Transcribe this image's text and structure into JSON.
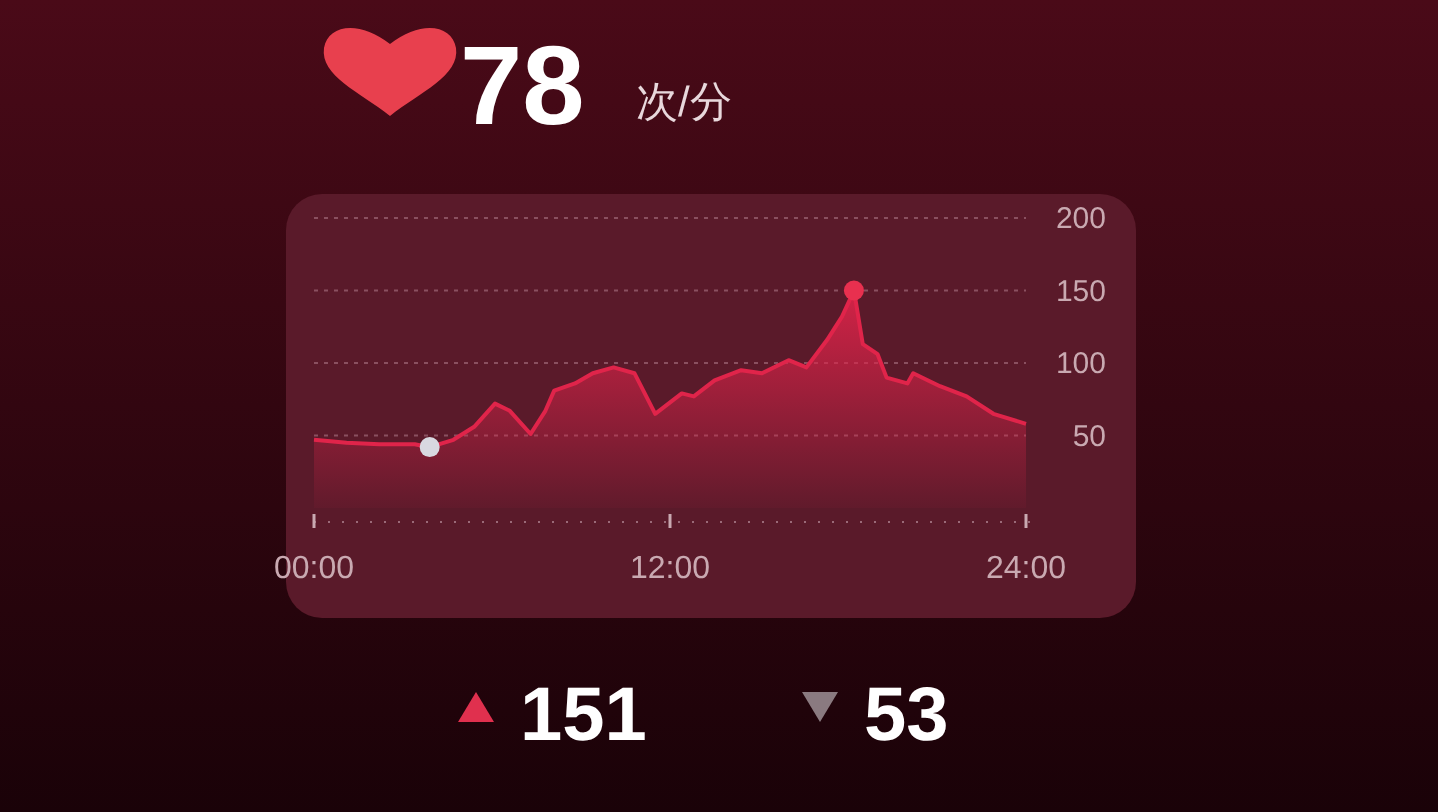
{
  "chart_data": {
    "type": "area",
    "title": "78",
    "annotations": [
      "次/分",
      "151",
      "53"
    ],
    "xlim": [
      0,
      24
    ],
    "xticks": [
      {
        "value": 0,
        "label": "00:00"
      },
      {
        "value": 12,
        "label": "12:00"
      },
      {
        "value": 24,
        "label": "24:00"
      }
    ],
    "ylim": [
      0,
      200
    ],
    "yticks": [
      50,
      100,
      150,
      200
    ],
    "grid": "y",
    "series": [
      {
        "color": "#e0244a",
        "x": [
          0,
          1.1,
          2.2,
          3.4,
          3.9,
          4.7,
          5.4,
          6.1,
          6.6,
          7.3,
          7.8,
          8.1,
          8.8,
          9.4,
          10.1,
          10.8,
          11.5,
          12.4,
          12.8,
          13.5,
          14.4,
          15.1,
          16,
          16.6,
          17.3,
          17.8,
          18.2,
          18.5,
          19,
          19.3,
          20,
          20.2,
          21.1,
          22,
          22.9,
          24
        ],
        "values": [
          47,
          45,
          44,
          44,
          42,
          47,
          56,
          72,
          67,
          51,
          67,
          81,
          86,
          93,
          97,
          93,
          65,
          79,
          77,
          88,
          95,
          93,
          102,
          97,
          116,
          132,
          150,
          113,
          106,
          90,
          86,
          93,
          84,
          77,
          65,
          58
        ]
      },
      {
        "type": "scatter",
        "color": "#e8304f",
        "x": [
          18.2
        ],
        "values": [
          150
        ]
      },
      {
        "type": "scatter",
        "color": "#d8d8e0",
        "x": [
          3.9
        ],
        "values": [
          42
        ]
      }
    ]
  }
}
